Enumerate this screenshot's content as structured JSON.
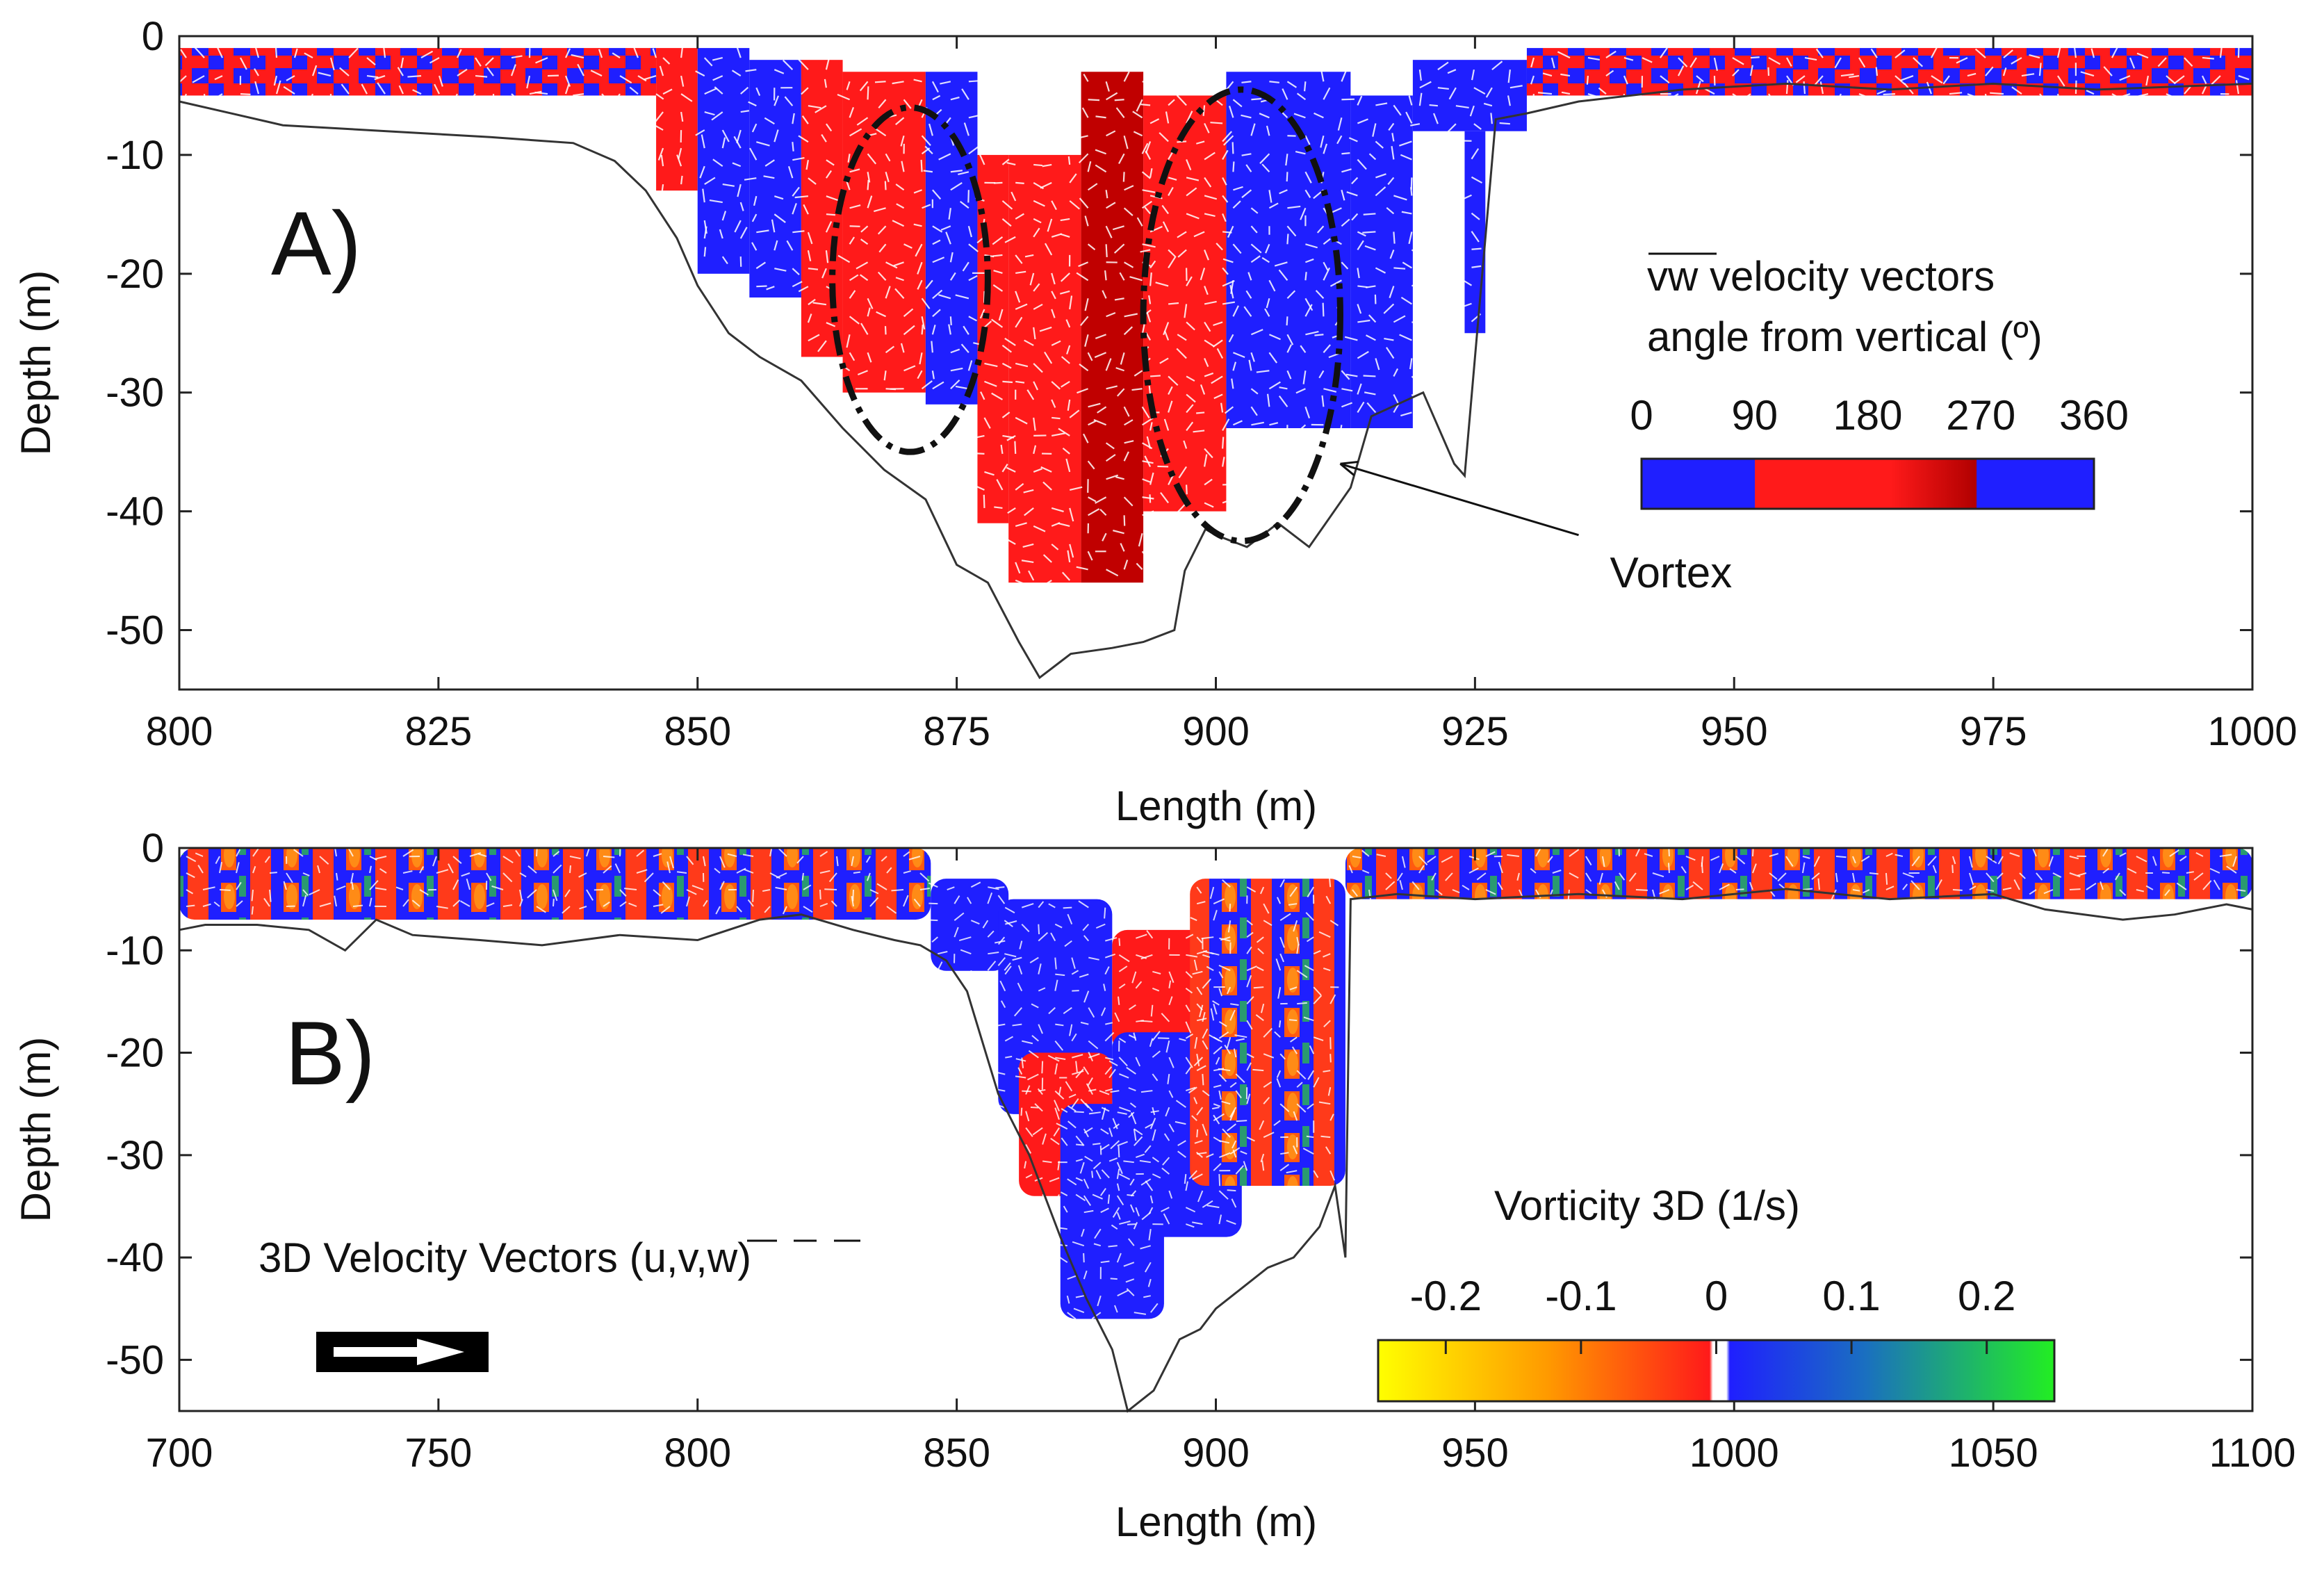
{
  "chart_data": [
    {
      "type": "scatter",
      "panel_label": "A)",
      "xlabel": "Length (m)",
      "ylabel": "Depth (m)",
      "xlim": [
        800,
        1000
      ],
      "ylim": [
        -55,
        0
      ],
      "xticks": [
        800,
        825,
        850,
        875,
        900,
        925,
        950,
        975,
        1000
      ],
      "yticks": [
        0,
        -10,
        -20,
        -30,
        -40,
        -50
      ],
      "bed_profile": {
        "x": [
          800,
          805,
          810,
          820,
          830,
          838,
          842,
          845,
          848,
          850,
          853,
          856,
          860,
          864,
          868,
          872,
          875,
          878,
          881,
          883,
          886,
          890,
          893,
          896,
          897,
          899,
          900,
          903,
          906,
          909,
          911,
          913,
          915,
          920,
          923,
          924,
          925,
          927,
          930,
          935,
          945,
          955,
          965,
          975,
          985,
          1000
        ],
        "y": [
          -5.5,
          -6.5,
          -7.5,
          -8.0,
          -8.5,
          -9.0,
          -10.5,
          -13.0,
          -17.0,
          -21.0,
          -25.0,
          -27.0,
          -29.0,
          -33.0,
          -36.5,
          -39.0,
          -44.5,
          -46.0,
          -51.0,
          -54.0,
          -52.0,
          -51.5,
          -51.0,
          -50.0,
          -45.0,
          -41.5,
          -42.0,
          -43.0,
          -41.0,
          -43.0,
          -40.5,
          -38.0,
          -32.0,
          -30.0,
          -36.0,
          -37.0,
          -27.0,
          -7.0,
          -6.5,
          -5.5,
          -4.5,
          -4.0,
          -4.5,
          -4.0,
          -4.5,
          -4.0
        ]
      },
      "angle_patches": {
        "columns": [
          {
            "x0": 800,
            "x1": 846,
            "ytop": -1,
            "ybot": -5,
            "fill": "mixed"
          },
          {
            "x0": 846,
            "x1": 850,
            "ytop": -1,
            "ybot": -13,
            "fill": "red"
          },
          {
            "x0": 850,
            "x1": 855,
            "ytop": -1,
            "ybot": -20,
            "fill": "blue"
          },
          {
            "x0": 855,
            "x1": 860,
            "ytop": -2,
            "ybot": -22,
            "fill": "blue"
          },
          {
            "x0": 860,
            "x1": 864,
            "ytop": -2,
            "ybot": -27,
            "fill": "red"
          },
          {
            "x0": 864,
            "x1": 872,
            "ytop": -3,
            "ybot": -30,
            "fill": "red"
          },
          {
            "x0": 872,
            "x1": 877,
            "ytop": -3,
            "ybot": -31,
            "fill": "blue"
          },
          {
            "x0": 877,
            "x1": 880,
            "ytop": -10,
            "ybot": -41,
            "fill": "red"
          },
          {
            "x0": 880,
            "x1": 887,
            "ytop": -10,
            "ybot": -46,
            "fill": "red"
          },
          {
            "x0": 887,
            "x1": 893,
            "ytop": -3,
            "ybot": -46,
            "fill": "darkred"
          },
          {
            "x0": 893,
            "x1": 901,
            "ytop": -5,
            "ybot": -40,
            "fill": "red"
          },
          {
            "x0": 901,
            "x1": 913,
            "ytop": -3,
            "ybot": -33,
            "fill": "blue"
          },
          {
            "x0": 913,
            "x1": 919,
            "ytop": -5,
            "ybot": -33,
            "fill": "blue"
          },
          {
            "x0": 919,
            "x1": 930,
            "ytop": -2,
            "ybot": -8,
            "fill": "blue"
          },
          {
            "x0": 924,
            "x1": 926,
            "ytop": -8,
            "ybot": -25,
            "fill": "blue"
          },
          {
            "x0": 930,
            "x1": 1000,
            "ytop": -1,
            "ybot": -5,
            "fill": "mixed"
          }
        ]
      },
      "annotations": [
        {
          "type": "ellipse",
          "cx": 870.5,
          "cy": -20.5,
          "rx": 7.5,
          "ry": 14.5
        },
        {
          "type": "ellipse",
          "cx": 902.5,
          "cy": -23.5,
          "rx": 9.5,
          "ry": 19
        },
        {
          "type": "arrow",
          "text": "Vortex",
          "from": [
            935,
            -42
          ],
          "to": [
            912,
            -36
          ]
        }
      ],
      "colorbar": {
        "title_line1": "vw velocity vectors",
        "title_line2": "angle from vertical (º)",
        "tick_labels": [
          "0",
          "90",
          "180",
          "270",
          "360"
        ],
        "ticks": [
          0,
          90,
          180,
          270,
          360
        ],
        "colors": [
          "#1f1fff",
          "#ff1a1a",
          "#ff1a1a",
          "#c00000",
          "#1f1fff"
        ]
      }
    },
    {
      "type": "scatter",
      "panel_label": "B)",
      "xlabel": "Length (m)",
      "ylabel": "Depth (m)",
      "xlim": [
        700,
        1100
      ],
      "ylim": [
        -55,
        0
      ],
      "xticks": [
        700,
        750,
        800,
        850,
        900,
        950,
        1000,
        1050,
        1100
      ],
      "yticks": [
        0,
        -10,
        -20,
        -30,
        -40,
        -50
      ],
      "bed_profile": {
        "x": [
          700,
          705,
          715,
          725,
          732,
          738,
          745,
          758,
          770,
          785,
          800,
          812,
          820,
          830,
          838,
          843,
          848,
          852,
          858,
          864,
          870,
          875,
          880,
          883,
          888,
          893,
          897,
          900,
          905,
          910,
          915,
          920,
          923,
          925,
          926,
          935,
          950,
          970,
          990,
          1010,
          1030,
          1050,
          1060,
          1075,
          1085,
          1095,
          1100
        ],
        "y": [
          -8,
          -7.5,
          -7.5,
          -8,
          -10,
          -7,
          -8.5,
          -9,
          -9.5,
          -8.5,
          -9,
          -7,
          -6.5,
          -8,
          -9,
          -9.5,
          -11,
          -14,
          -24,
          -30,
          -38,
          -44,
          -49,
          -55,
          -53,
          -48,
          -47,
          -45,
          -43,
          -41,
          -40,
          -37,
          -33,
          -40,
          -5,
          -4.5,
          -5,
          -4.5,
          -5,
          -4,
          -5,
          -4.5,
          -6,
          -7,
          -6.5,
          -5.5,
          -6
        ]
      },
      "vorticity_patches": {
        "regions": [
          {
            "x0": 700,
            "x1": 845,
            "ytop": 0,
            "ybot": -7,
            "fill": "mixed"
          },
          {
            "x0": 845,
            "x1": 860,
            "ytop": -3,
            "ybot": -12,
            "fill": "blue"
          },
          {
            "x0": 858,
            "x1": 880,
            "ytop": -5,
            "ybot": -26,
            "fill": "blue"
          },
          {
            "x0": 862,
            "x1": 880,
            "ytop": -20,
            "ybot": -34,
            "fill": "red"
          },
          {
            "x0": 870,
            "x1": 890,
            "ytop": -25,
            "ybot": -46,
            "fill": "blue"
          },
          {
            "x0": 880,
            "x1": 903,
            "ytop": -8,
            "ybot": -20,
            "fill": "red"
          },
          {
            "x0": 880,
            "x1": 905,
            "ytop": -18,
            "ybot": -38,
            "fill": "blue"
          },
          {
            "x0": 895,
            "x1": 925,
            "ytop": -3,
            "ybot": -33,
            "fill": "mixed"
          },
          {
            "x0": 925,
            "x1": 1100,
            "ytop": 0,
            "ybot": -5,
            "fill": "mixed"
          }
        ]
      },
      "colorbar": {
        "title": "Vorticity 3D (1/s)",
        "tick_labels": [
          "-0.2",
          "-0.1",
          "0",
          "0.1",
          "0.2"
        ],
        "ticks": [
          -0.2,
          -0.1,
          0,
          0.1,
          0.2
        ],
        "range": [
          -0.25,
          0.25
        ],
        "colors": [
          "#ffff00",
          "#ff8800",
          "#ff1a1a",
          "#ffffff",
          "#1f1fff",
          "#1a80a0",
          "#22ee22"
        ]
      },
      "legend": {
        "text": "3D Velocity Vectors (u,v,w)",
        "arrow": "reference-vector"
      }
    }
  ],
  "colors": {
    "blue": "#1f1fff",
    "red": "#ff1a1a",
    "darkred": "#c00000",
    "axis": "#222222"
  }
}
